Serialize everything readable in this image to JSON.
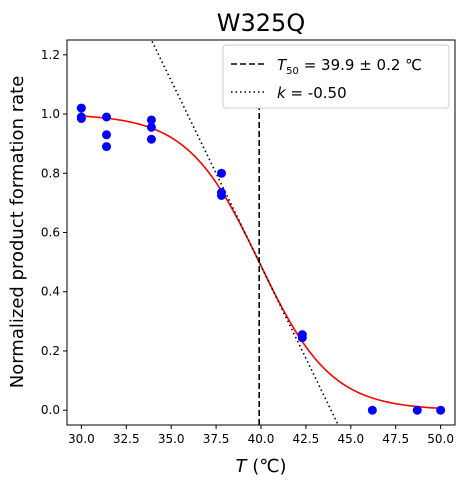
{
  "chart_data": {
    "type": "scatter",
    "title": "W325Q",
    "xlabel_italic": "T",
    "xlabel_unit": "(℃)",
    "ylabel": "Normalized product formation rate",
    "xlim": [
      29.2,
      50.8
    ],
    "ylim": [
      -0.05,
      1.25
    ],
    "xticks": [
      30.0,
      32.5,
      35.0,
      37.5,
      40.0,
      42.5,
      45.0,
      47.5,
      50.0
    ],
    "xtick_labels": [
      "30.0",
      "32.5",
      "35.0",
      "37.5",
      "40.0",
      "42.5",
      "45.0",
      "47.5",
      "50.0"
    ],
    "yticks": [
      0.0,
      0.2,
      0.4,
      0.6,
      0.8,
      1.0,
      1.2
    ],
    "ytick_labels": [
      "0.0",
      "0.2",
      "0.4",
      "0.6",
      "0.8",
      "1.0",
      "1.2"
    ],
    "points": [
      {
        "x": 30.0,
        "y": 1.02
      },
      {
        "x": 30.0,
        "y": 0.99
      },
      {
        "x": 30.0,
        "y": 0.985
      },
      {
        "x": 31.4,
        "y": 0.99
      },
      {
        "x": 31.4,
        "y": 0.93
      },
      {
        "x": 31.4,
        "y": 0.89
      },
      {
        "x": 33.9,
        "y": 0.98
      },
      {
        "x": 33.9,
        "y": 0.955
      },
      {
        "x": 33.9,
        "y": 0.915
      },
      {
        "x": 37.8,
        "y": 0.8
      },
      {
        "x": 37.8,
        "y": 0.735
      },
      {
        "x": 37.8,
        "y": 0.725
      },
      {
        "x": 42.3,
        "y": 0.255
      },
      {
        "x": 42.3,
        "y": 0.245
      },
      {
        "x": 46.2,
        "y": 0.0
      },
      {
        "x": 48.7,
        "y": 0.0
      },
      {
        "x": 50.0,
        "y": 0.0
      }
    ],
    "fit": {
      "type": "logistic",
      "t50": 39.9,
      "k": -0.5,
      "plateau": 1.0,
      "x_from": 30.0,
      "x_to": 50.0
    },
    "t50_line_x": 39.9,
    "slope_line": {
      "x_at_half": 39.9,
      "slope_per_degree": -0.125
    },
    "legend": {
      "placement": "upper-right",
      "t50_label": "= 39.9 ± 0.2 ℃",
      "k_label": "= -0.50"
    },
    "colors": {
      "points": "#0000ff",
      "fit": "#ff0000",
      "lines": "#000000"
    }
  }
}
